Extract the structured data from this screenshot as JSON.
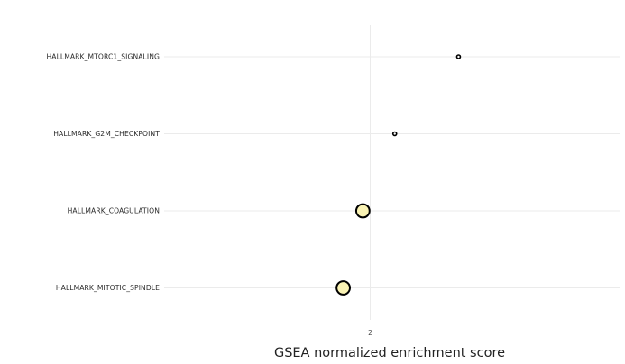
{
  "chart_data": {
    "type": "scatter",
    "title": "",
    "xlabel": "GSEA normalized enrichment score",
    "ylabel": "",
    "categories": [
      "HALLMARK_MTORC1_SIGNALING",
      "HALLMARK_G2M_CHECKPOINT",
      "HALLMARK_COAGULATION",
      "HALLMARK_MITOTIC_SPINDLE"
    ],
    "x_ticks": [
      "2"
    ],
    "x_tick_values": [
      2
    ],
    "xlim": [
      1.58,
      2.51
    ],
    "grid": true,
    "legend": "none",
    "series": [
      {
        "points": [
          {
            "category": "HALLMARK_MTORC1_SIGNALING",
            "x": 2.18,
            "size": 1,
            "color": "#fafafa"
          },
          {
            "category": "HALLMARK_G2M_CHECKPOINT",
            "x": 2.05,
            "size": 1,
            "color": "#fafafa"
          },
          {
            "category": "HALLMARK_COAGULATION",
            "x": 1.985,
            "size": 5,
            "color": "#faf3b4"
          },
          {
            "category": "HALLMARK_MITOTIC_SPINDLE",
            "x": 1.945,
            "size": 5,
            "color": "#faf3b4"
          }
        ]
      }
    ]
  },
  "colors": {
    "grid": "#ebebeb",
    "marker_edge": "#000000",
    "text": "#2a2a2a"
  }
}
